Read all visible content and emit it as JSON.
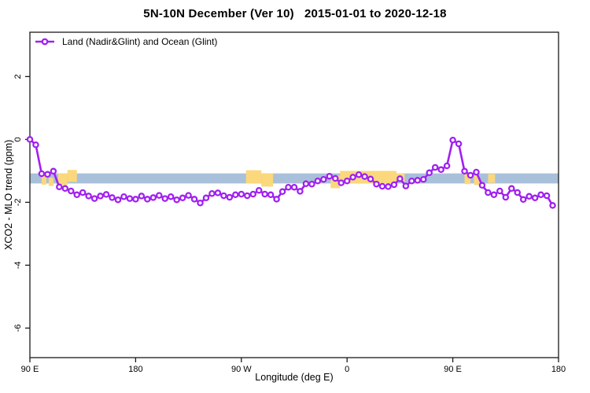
{
  "header": {
    "title": "5N-10N December (Ver 10)   2015-01-01 to 2020-12-18"
  },
  "legend": {
    "label": "Land (Nadir&Glint) and Ocean (Glint)"
  },
  "colors": {
    "series": "#a020f0",
    "marker_fill": "#ffffff",
    "reference_band": "#a9c0da",
    "land_patch": "#fbd87c",
    "axis": "#1a1a1a",
    "text": "#000000"
  },
  "chart_data": {
    "type": "line",
    "title": "5N-10N December (Ver 10)   2015-01-01 to 2020-12-18",
    "xlabel": "Longitude (deg E)",
    "ylabel": "XCO2 - MLO trend (ppm)",
    "xlim": [
      90,
      540
    ],
    "ylim": [
      -6.94,
      3.41
    ],
    "grid": false,
    "legend_position": "top-left",
    "x_ticks": [
      {
        "value": 90,
        "label": "90 E"
      },
      {
        "value": 180,
        "label": "180"
      },
      {
        "value": 270,
        "label": "90 W"
      },
      {
        "value": 360,
        "label": "0"
      },
      {
        "value": 450,
        "label": "90 E"
      },
      {
        "value": 540,
        "label": "180"
      }
    ],
    "y_ticks": [
      {
        "value": 2,
        "label": "2"
      },
      {
        "value": 0,
        "label": "0"
      },
      {
        "value": -2,
        "label": "-2"
      },
      {
        "value": -4,
        "label": "-4"
      },
      {
        "value": -6,
        "label": "-6"
      }
    ],
    "reference_band": {
      "y_top": -1.08,
      "y_bottom": -1.4
    },
    "land_patches": [
      {
        "x0": 100,
        "x1": 104,
        "y0": -1.44,
        "y1": -1.1
      },
      {
        "x0": 106,
        "x1": 110,
        "y0": -1.48,
        "y1": -1.22
      },
      {
        "x0": 114,
        "x1": 122,
        "y0": -1.45,
        "y1": -1.08
      },
      {
        "x0": 122,
        "x1": 130,
        "y0": -1.35,
        "y1": -0.97
      },
      {
        "x0": 274,
        "x1": 287,
        "y0": -1.4,
        "y1": -0.98
      },
      {
        "x0": 287,
        "x1": 297,
        "y0": -1.5,
        "y1": -1.08
      },
      {
        "x0": 346,
        "x1": 354,
        "y0": -1.55,
        "y1": -1.15
      },
      {
        "x0": 354,
        "x1": 402,
        "y0": -1.4,
        "y1": -1.0
      },
      {
        "x0": 402,
        "x1": 409,
        "y0": -1.35,
        "y1": -1.08
      },
      {
        "x0": 460,
        "x1": 465,
        "y0": -1.42,
        "y1": -1.1
      },
      {
        "x0": 468,
        "x1": 473,
        "y0": -1.45,
        "y1": -1.15
      },
      {
        "x0": 480,
        "x1": 486,
        "y0": -1.38,
        "y1": -1.1
      }
    ],
    "series": [
      {
        "name": "Land (Nadir&Glint) and Ocean (Glint)",
        "marker": "open-circle",
        "x": [
          90,
          95,
          100,
          105,
          110,
          115,
          120,
          125,
          130,
          135,
          140,
          145,
          150,
          155,
          160,
          165,
          170,
          175,
          180,
          185,
          190,
          195,
          200,
          205,
          210,
          215,
          220,
          225,
          230,
          235,
          240,
          245,
          250,
          255,
          260,
          265,
          270,
          275,
          280,
          285,
          290,
          295,
          300,
          305,
          310,
          315,
          320,
          325,
          330,
          335,
          340,
          345,
          350,
          355,
          360,
          365,
          370,
          375,
          380,
          385,
          390,
          395,
          400,
          405,
          410,
          415,
          420,
          425,
          430,
          435,
          440,
          445,
          450,
          455,
          460,
          465,
          470,
          475,
          480,
          485,
          490,
          495,
          500,
          505,
          510,
          515,
          520,
          525,
          530,
          535
        ],
        "y": [
          0.0,
          -0.17,
          -1.09,
          -1.11,
          -1.01,
          -1.51,
          -1.56,
          -1.64,
          -1.76,
          -1.69,
          -1.8,
          -1.88,
          -1.8,
          -1.75,
          -1.85,
          -1.92,
          -1.82,
          -1.88,
          -1.9,
          -1.8,
          -1.9,
          -1.85,
          -1.78,
          -1.88,
          -1.82,
          -1.92,
          -1.86,
          -1.78,
          -1.9,
          -2.02,
          -1.86,
          -1.72,
          -1.7,
          -1.79,
          -1.84,
          -1.76,
          -1.74,
          -1.79,
          -1.74,
          -1.62,
          -1.74,
          -1.76,
          -1.9,
          -1.66,
          -1.52,
          -1.52,
          -1.65,
          -1.41,
          -1.42,
          -1.32,
          -1.27,
          -1.17,
          -1.24,
          -1.38,
          -1.32,
          -1.2,
          -1.12,
          -1.18,
          -1.26,
          -1.42,
          -1.49,
          -1.5,
          -1.44,
          -1.25,
          -1.48,
          -1.32,
          -1.3,
          -1.27,
          -1.06,
          -0.89,
          -0.96,
          -0.84,
          -0.02,
          -0.14,
          -1.01,
          -1.14,
          -1.04,
          -1.46,
          -1.69,
          -1.76,
          -1.64,
          -1.84,
          -1.56,
          -1.69,
          -1.91,
          -1.81,
          -1.86,
          -1.76,
          -1.79,
          -2.1
        ]
      }
    ]
  }
}
